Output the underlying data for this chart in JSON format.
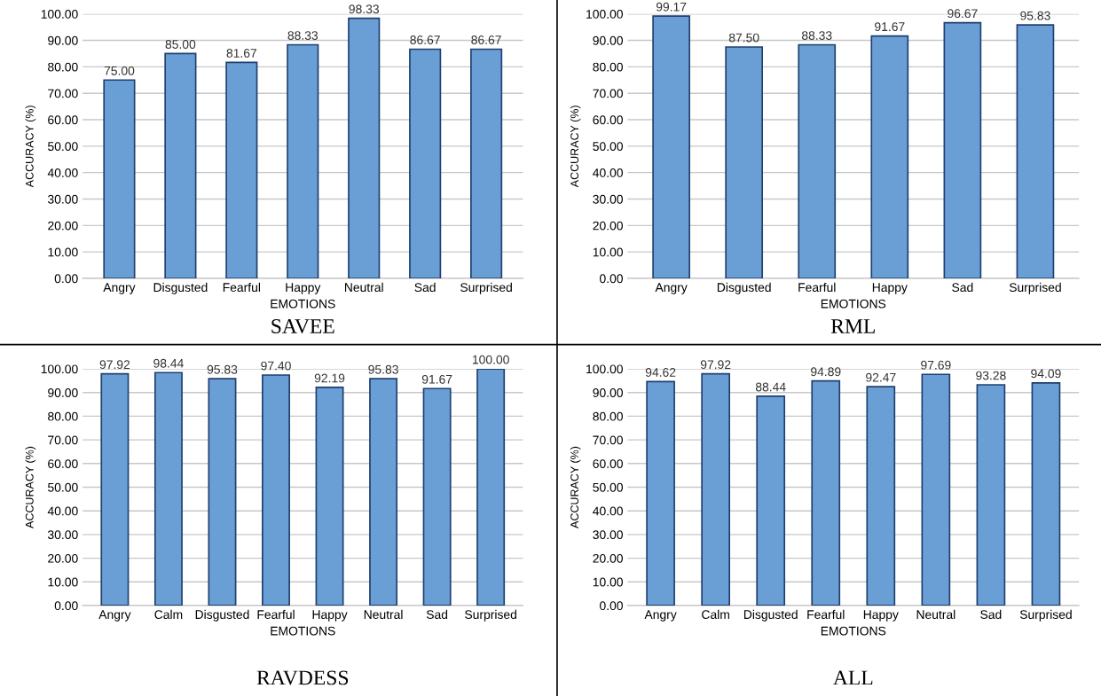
{
  "chart_data": [
    {
      "type": "bar",
      "title": "SAVEE",
      "xlabel": "EMOTIONS",
      "ylabel": "ACCURACY (%)",
      "categories": [
        "Angry",
        "Disgusted",
        "Fearful",
        "Happy",
        "Neutral",
        "Sad",
        "Surprised"
      ],
      "values": [
        75.0,
        85.0,
        81.67,
        88.33,
        98.33,
        86.67,
        86.67
      ],
      "value_labels": [
        "75.00",
        "85.00",
        "81.67",
        "88.33",
        "98.33",
        "86.67",
        "86.67"
      ],
      "color": "#6a9fd6",
      "ylim": [
        0,
        100
      ],
      "yticks": [
        {
          "value": 0,
          "label": "0.00"
        },
        {
          "value": 10,
          "label": "10.00"
        },
        {
          "value": 20,
          "label": "20.00"
        },
        {
          "value": 30,
          "label": "30.00"
        },
        {
          "value": 40,
          "label": "40.00"
        },
        {
          "value": 50,
          "label": "50.00"
        },
        {
          "value": 60,
          "label": "60.00"
        },
        {
          "value": 70,
          "label": "70.00"
        },
        {
          "value": 80,
          "label": "80.00"
        },
        {
          "value": 90,
          "label": "90.00"
        },
        {
          "value": 100,
          "label": "100.00"
        }
      ],
      "grid": "y"
    },
    {
      "type": "bar",
      "title": "RML",
      "xlabel": "EMOTIONS",
      "ylabel": "ACCURACY (%)",
      "categories": [
        "Angry",
        "Disgusted",
        "Fearful",
        "Happy",
        "Sad",
        "Surprised"
      ],
      "values": [
        99.17,
        87.5,
        88.33,
        91.67,
        96.67,
        95.83
      ],
      "value_labels": [
        "99.17",
        "87.50",
        "88.33",
        "91.67",
        "96.67",
        "95.83"
      ],
      "color": "#6a9fd6",
      "ylim": [
        0,
        100
      ],
      "yticks": [
        {
          "value": 0,
          "label": "0.00"
        },
        {
          "value": 10,
          "label": "10.00"
        },
        {
          "value": 20,
          "label": "20.00"
        },
        {
          "value": 30,
          "label": "30.00"
        },
        {
          "value": 40,
          "label": "40.00"
        },
        {
          "value": 50,
          "label": "50.00"
        },
        {
          "value": 60,
          "label": "60.00"
        },
        {
          "value": 70,
          "label": "70.00"
        },
        {
          "value": 80,
          "label": "80.00"
        },
        {
          "value": 90,
          "label": "90.00"
        },
        {
          "value": 100,
          "label": "100.00"
        }
      ],
      "grid": "y"
    },
    {
      "type": "bar",
      "title": "RAVDESS",
      "xlabel": "EMOTIONS",
      "ylabel": "ACCURACY (%)",
      "categories": [
        "Angry",
        "Calm",
        "Disgusted",
        "Fearful",
        "Happy",
        "Neutral",
        "Sad",
        "Surprised"
      ],
      "values": [
        97.92,
        98.44,
        95.83,
        97.4,
        92.19,
        95.83,
        91.67,
        100.0
      ],
      "value_labels": [
        "97.92",
        "98.44",
        "95.83",
        "97.40",
        "92.19",
        "95.83",
        "91.67",
        "100.00"
      ],
      "color": "#6a9fd6",
      "ylim": [
        0,
        100
      ],
      "yticks": [
        {
          "value": 0,
          "label": "0.00"
        },
        {
          "value": 10,
          "label": "10.00"
        },
        {
          "value": 20,
          "label": "20.00"
        },
        {
          "value": 30,
          "label": "30.00"
        },
        {
          "value": 40,
          "label": "40.00"
        },
        {
          "value": 50,
          "label": "50.00"
        },
        {
          "value": 60,
          "label": "60.00"
        },
        {
          "value": 70,
          "label": "70.00"
        },
        {
          "value": 80,
          "label": "80.00"
        },
        {
          "value": 90,
          "label": "90.00"
        },
        {
          "value": 100,
          "label": "100.00"
        }
      ],
      "grid": "y"
    },
    {
      "type": "bar",
      "title": "ALL",
      "xlabel": "EMOTIONS",
      "ylabel": "ACCURACY (%)",
      "categories": [
        "Angry",
        "Calm",
        "Disgusted",
        "Fearful",
        "Happy",
        "Neutral",
        "Sad",
        "Surprised"
      ],
      "values": [
        94.62,
        97.92,
        88.44,
        94.89,
        92.47,
        97.69,
        93.28,
        94.09
      ],
      "value_labels": [
        "94.62",
        "97.92",
        "88.44",
        "94.89",
        "92.47",
        "97.69",
        "93.28",
        "94.09"
      ],
      "color": "#6a9fd6",
      "ylim": [
        0,
        100
      ],
      "yticks": [
        {
          "value": 0,
          "label": "0.00"
        },
        {
          "value": 10,
          "label": "10.00"
        },
        {
          "value": 20,
          "label": "20.00"
        },
        {
          "value": 30,
          "label": "30.00"
        },
        {
          "value": 40,
          "label": "40.00"
        },
        {
          "value": 50,
          "label": "50.00"
        },
        {
          "value": 60,
          "label": "60.00"
        },
        {
          "value": 70,
          "label": "70.00"
        },
        {
          "value": 80,
          "label": "80.00"
        },
        {
          "value": 90,
          "label": "90.00"
        },
        {
          "value": 100,
          "label": "100.00"
        }
      ],
      "grid": "y"
    }
  ]
}
